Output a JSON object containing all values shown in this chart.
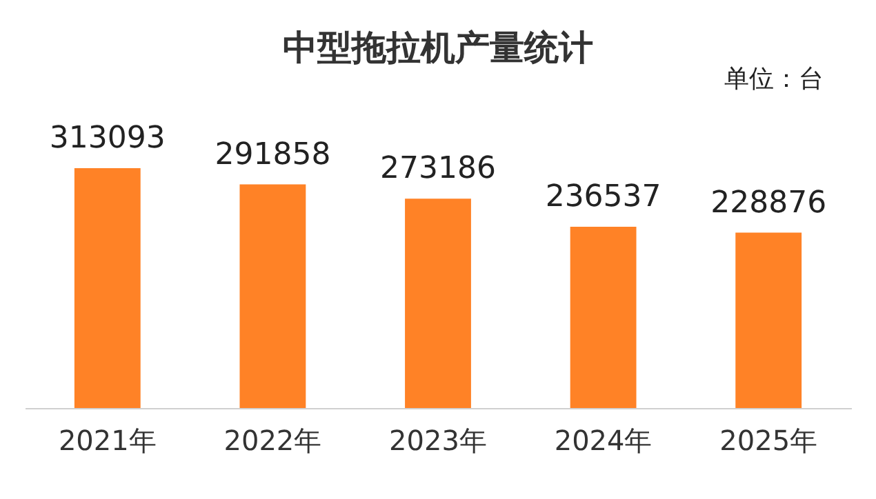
{
  "chart_data": {
    "type": "bar",
    "title": "中型拖拉机产量统计",
    "annotations": [
      "单位：台"
    ],
    "categories": [
      "2021年",
      "2022年",
      "2023年",
      "2024年",
      "2025年"
    ],
    "values": [
      313093,
      291858,
      273186,
      236537,
      228876
    ],
    "color": "#ff8226",
    "data_labels": true
  }
}
